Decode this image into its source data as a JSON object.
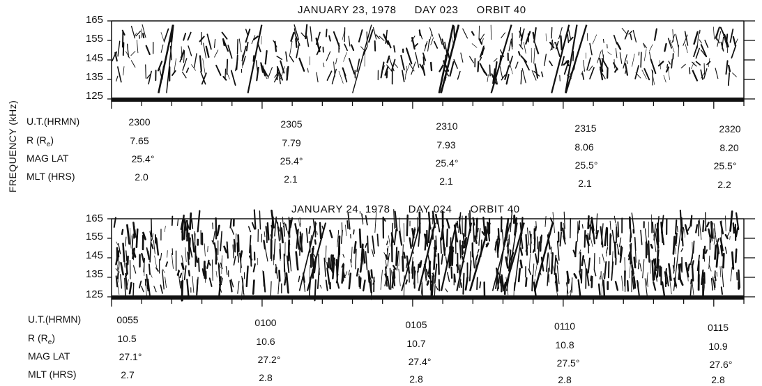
{
  "figure": {
    "ylabel": "FREQUENCY (kHz)"
  },
  "panels": [
    {
      "title_date": "JANUARY 23, 1978",
      "title_day": "DAY 023",
      "title_orbit": "ORBIT 40",
      "yticks": [
        "165",
        "155",
        "145",
        "135",
        "125"
      ],
      "row_labels": [
        "U.T.(HRMN)",
        "R (Re)",
        "MAG  LAT",
        "MLT (HRS)"
      ],
      "ut": [
        "2300",
        "2305",
        "2310",
        "2315",
        "2320"
      ],
      "r": [
        "7.65",
        "7.79",
        "7.93",
        "8.06",
        "8.20"
      ],
      "maglat": [
        "25.4°",
        "25.4°",
        "25.4°",
        "25.5°",
        "25.5°"
      ],
      "mlt": [
        "2.0",
        "2.1",
        "2.1",
        "2.1",
        "2.2"
      ]
    },
    {
      "title_date": "JANUARY 24, 1978",
      "title_day": "DAY 024",
      "title_orbit": "ORBIT 40",
      "yticks": [
        "165",
        "155",
        "145",
        "135",
        "125"
      ],
      "row_labels": [
        "U.T.(HRMN)",
        "R (Re)",
        "MAG  LAT",
        "MLT (HRS)"
      ],
      "ut": [
        "0055",
        "0100",
        "0105",
        "0110",
        "0115"
      ],
      "r": [
        "10.5",
        "10.6",
        "10.7",
        "10.8",
        "10.9"
      ],
      "maglat": [
        "27.1°",
        "27.2°",
        "27.4°",
        "27.5°",
        "27.6°"
      ],
      "mlt": [
        "2.7",
        "2.8",
        "2.8",
        "2.8",
        "2.8"
      ]
    }
  ],
  "chart_data": [
    {
      "type": "heatmap",
      "title": "JANUARY 23, 1978   DAY 023   ORBIT 40",
      "ylabel": "FREQUENCY (kHz)",
      "ylim": [
        125,
        165
      ],
      "yticks": [
        165,
        155,
        145,
        135,
        125
      ],
      "x_ut": [
        "2300",
        "2305",
        "2310",
        "2315",
        "2320"
      ],
      "R_Re": [
        7.65,
        7.79,
        7.93,
        8.06,
        8.2
      ],
      "mag_lat_deg": [
        25.4,
        25.4,
        25.4,
        25.5,
        25.5
      ],
      "mlt_hrs": [
        2.0,
        2.1,
        2.1,
        2.1,
        2.2
      ],
      "emission_band_khz": [
        135,
        160
      ]
    },
    {
      "type": "heatmap",
      "title": "JANUARY 24, 1978   DAY 024   ORBIT 40",
      "ylabel": "FREQUENCY (kHz)",
      "ylim": [
        125,
        165
      ],
      "yticks": [
        165,
        155,
        145,
        135,
        125
      ],
      "x_ut": [
        "0055",
        "0100",
        "0105",
        "0110",
        "0115"
      ],
      "R_Re": [
        10.5,
        10.6,
        10.7,
        10.8,
        10.9
      ],
      "mag_lat_deg": [
        27.1,
        27.2,
        27.4,
        27.5,
        27.6
      ],
      "mlt_hrs": [
        2.7,
        2.8,
        2.8,
        2.8,
        2.8
      ],
      "emission_band_khz": [
        128,
        165
      ]
    }
  ]
}
